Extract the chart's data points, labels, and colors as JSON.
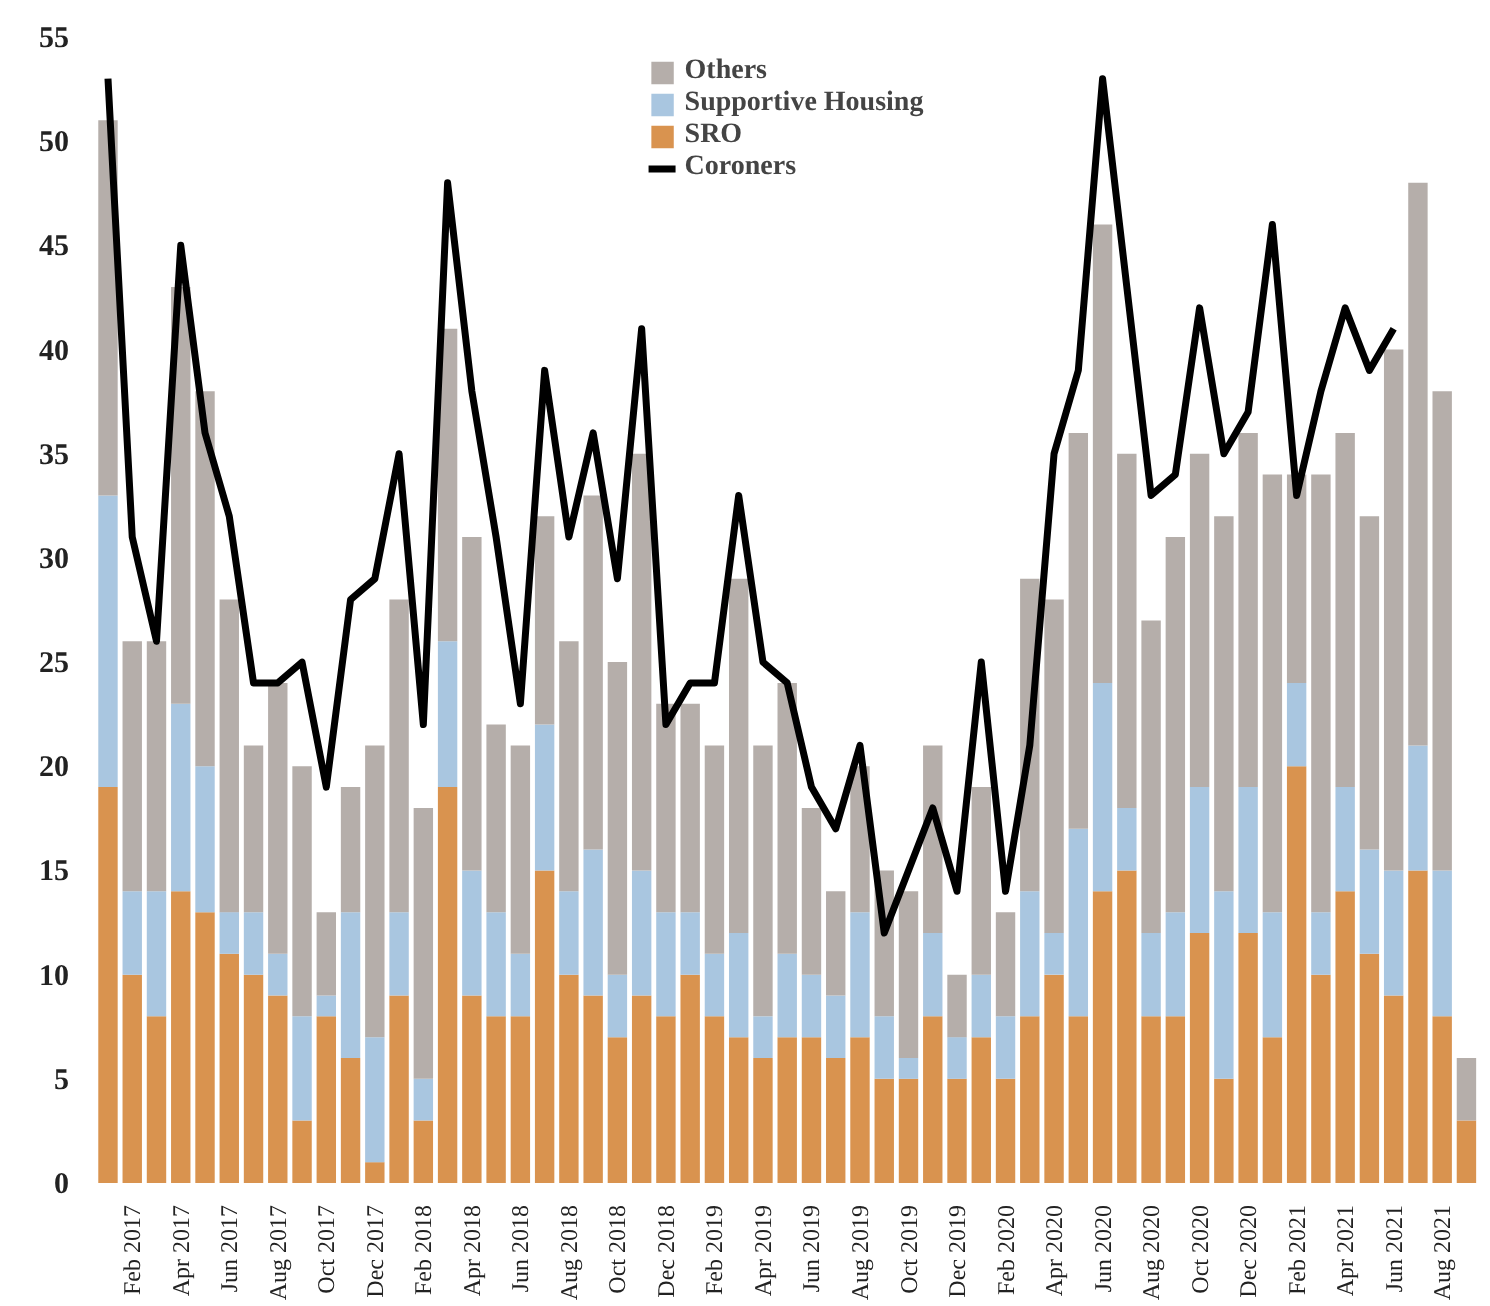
{
  "chart_data": {
    "type": "bar",
    "stacked": true,
    "categories": [
      null,
      "Feb 2017",
      null,
      "Apr 2017",
      null,
      "Jun 2017",
      null,
      "Aug 2017",
      null,
      "Oct 2017",
      null,
      "Dec 2017",
      null,
      "Feb 2018",
      null,
      "Apr 2018",
      null,
      "Jun 2018",
      null,
      "Aug 2018",
      null,
      "Oct 2018",
      null,
      "Dec 2018",
      null,
      "Feb 2019",
      null,
      "Apr 2019",
      null,
      "Jun 2019",
      null,
      "Aug 2019",
      null,
      "Oct 2019",
      null,
      "Dec 2019",
      null,
      "Feb 2020",
      null,
      "Apr 2020",
      null,
      "Jun 2020",
      null,
      "Aug 2020",
      null,
      "Oct 2020",
      null,
      "Dec 2020",
      null,
      "Feb 2021",
      null,
      "Apr 2021",
      null,
      "Jun 2021",
      null,
      "Aug 2021",
      null
    ],
    "series": [
      {
        "name": "SRO",
        "color": "#d9934f",
        "values": [
          19,
          10,
          8,
          14,
          13,
          11,
          10,
          9,
          3,
          8,
          6,
          1,
          9,
          3,
          19,
          9,
          8,
          8,
          15,
          10,
          9,
          7,
          9,
          8,
          10,
          8,
          7,
          6,
          7,
          7,
          6,
          7,
          5,
          5,
          8,
          5,
          7,
          5,
          8,
          10,
          8,
          14,
          15,
          8,
          8,
          12,
          5,
          12,
          7,
          20,
          10,
          14,
          11,
          9,
          15,
          8,
          3
        ]
      },
      {
        "name": "Supportive Housing",
        "color": "#a9c6e0",
        "values": [
          14,
          4,
          6,
          9,
          7,
          2,
          3,
          2,
          5,
          1,
          7,
          6,
          4,
          2,
          7,
          6,
          5,
          3,
          7,
          4,
          7,
          3,
          6,
          5,
          3,
          3,
          5,
          2,
          4,
          3,
          3,
          6,
          3,
          1,
          4,
          2,
          3,
          3,
          6,
          2,
          9,
          10,
          3,
          4,
          5,
          7,
          9,
          7,
          6,
          4,
          3,
          5,
          5,
          6,
          6,
          7,
          0
        ]
      },
      {
        "name": "Others",
        "color": "#b5aeaa",
        "values": [
          18,
          12,
          12,
          20,
          18,
          15,
          8,
          13,
          12,
          4,
          6,
          14,
          15,
          13,
          15,
          16,
          9,
          10,
          10,
          12,
          17,
          15,
          20,
          10,
          10,
          10,
          17,
          13,
          13,
          8,
          5,
          7,
          7,
          8,
          9,
          3,
          9,
          5,
          15,
          16,
          19,
          22,
          17,
          15,
          18,
          16,
          18,
          17,
          21,
          10,
          21,
          17,
          16,
          25,
          27,
          23,
          3
        ]
      },
      {
        "name": "Coroners",
        "type": "line",
        "color": "#000000",
        "values": [
          53,
          31,
          26,
          45,
          36,
          32,
          24,
          24,
          25,
          19,
          28,
          29,
          35,
          22,
          48,
          38,
          31,
          23,
          39,
          31,
          36,
          29,
          41,
          22,
          24,
          24,
          33,
          25,
          24,
          19,
          17,
          21,
          12,
          15,
          18,
          14,
          25,
          14,
          21,
          35,
          39,
          53,
          43,
          33,
          34,
          42,
          35,
          37,
          46,
          33,
          38,
          42,
          39,
          41,
          null,
          null,
          null
        ]
      }
    ],
    "ylim": [
      0,
      55
    ],
    "yticks": [
      0,
      5,
      10,
      15,
      20,
      25,
      30,
      35,
      40,
      45,
      50,
      55
    ],
    "grid": false,
    "legend": "top"
  }
}
